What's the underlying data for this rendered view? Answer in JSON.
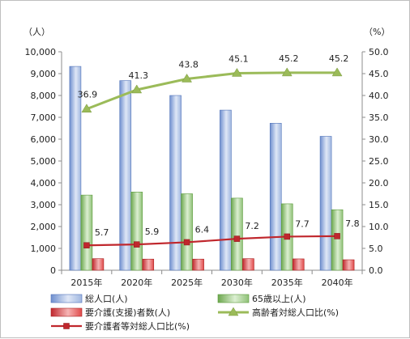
{
  "chart_data": {
    "type": "bar",
    "categories": [
      "2015年",
      "2020年",
      "2025年",
      "2030年",
      "2035年",
      "2040年"
    ],
    "left_axis": {
      "unit": "（人）",
      "ylim": [
        0,
        10000
      ],
      "ticks": [
        "0",
        "1,000",
        "2,000",
        "3,000",
        "4,000",
        "5,000",
        "6,000",
        "7,000",
        "8,000",
        "9,000",
        "10,000"
      ]
    },
    "right_axis": {
      "unit": "（%）",
      "ylim": [
        0,
        50
      ],
      "ticks": [
        "0.0",
        "5.0",
        "10.0",
        "15.0",
        "20.0",
        "25.0",
        "30.0",
        "35.0",
        "40.0",
        "45.0",
        "50.0"
      ]
    },
    "series": [
      {
        "name": "総人口(人)",
        "kind": "bar",
        "axis": "left",
        "color": "#8eaadb",
        "values": [
          9330,
          8680,
          8000,
          7330,
          6730,
          6130
        ]
      },
      {
        "name": "65歳以上(人)",
        "kind": "bar",
        "axis": "left",
        "color": "#8fc177",
        "values": [
          3440,
          3580,
          3500,
          3300,
          3040,
          2770
        ]
      },
      {
        "name": "要介護(支援)者数(人)",
        "kind": "bar",
        "axis": "left",
        "color": "#e04a4a",
        "values": [
          530,
          510,
          510,
          530,
          520,
          480
        ]
      },
      {
        "name": "高齢者対総人口比(%)",
        "kind": "line",
        "axis": "right",
        "color": "#9bbb59",
        "values": [
          36.9,
          41.3,
          43.8,
          45.1,
          45.2,
          45.2
        ],
        "labels": [
          "36.9",
          "41.3",
          "43.8",
          "45.1",
          "45.2",
          "45.2"
        ]
      },
      {
        "name": "要介護者等対総人口比(%)",
        "kind": "line",
        "axis": "right",
        "color": "#c0272d",
        "values": [
          5.7,
          5.9,
          6.4,
          7.2,
          7.7,
          7.8
        ],
        "labels": [
          "5.7",
          "5.9",
          "6.4",
          "7.2",
          "7.7",
          "7.8"
        ]
      }
    ],
    "grid": false,
    "legend_position": "bottom"
  }
}
